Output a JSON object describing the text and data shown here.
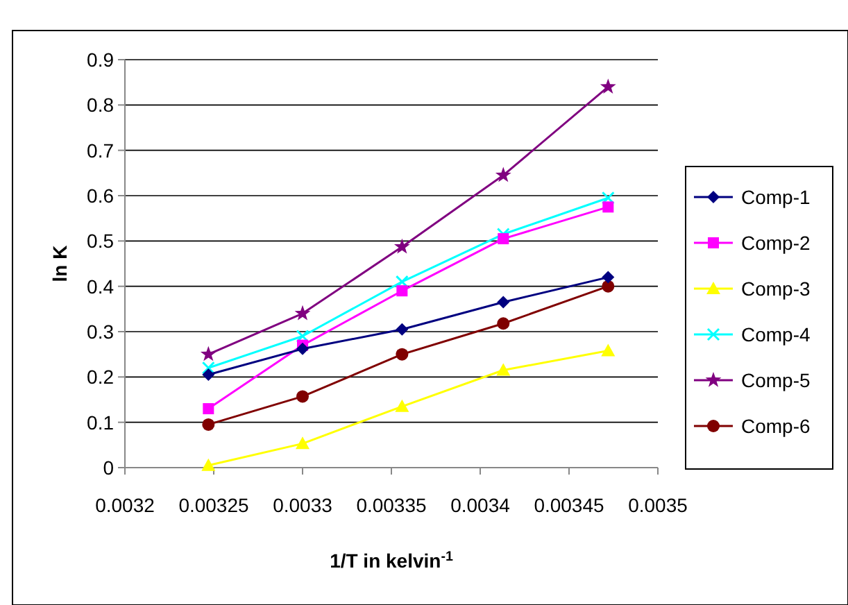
{
  "chart_data": {
    "type": "line",
    "xlabel": "1/T in kelvin$^{-1}$",
    "ylabel": "ln K",
    "x": [
      0.003247,
      0.0033,
      0.003356,
      0.003413,
      0.003472
    ],
    "xlim": [
      0.0032,
      0.0035
    ],
    "xticks": [
      0.0032,
      0.00325,
      0.0033,
      0.00335,
      0.0034,
      0.00345,
      0.0035
    ],
    "ylim": [
      0,
      0.9
    ],
    "yticks": [
      0,
      0.1,
      0.2,
      0.3,
      0.4,
      0.5,
      0.6,
      0.7,
      0.8,
      0.9
    ],
    "grid": "y",
    "legend": "right",
    "series": [
      {
        "name": "Comp-1",
        "color": "#000080",
        "marker": "diamond",
        "values": [
          0.205,
          0.262,
          0.305,
          0.365,
          0.42
        ]
      },
      {
        "name": "Comp-2",
        "color": "#ff00ff",
        "marker": "square",
        "values": [
          0.13,
          0.27,
          0.39,
          0.505,
          0.575
        ]
      },
      {
        "name": "Comp-3",
        "color": "#ffff00",
        "marker": "triangle",
        "values": [
          0.005,
          0.053,
          0.135,
          0.215,
          0.258
        ]
      },
      {
        "name": "Comp-4",
        "color": "#00ffff",
        "marker": "cross",
        "values": [
          0.22,
          0.29,
          0.41,
          0.515,
          0.595
        ]
      },
      {
        "name": "Comp-5",
        "color": "#800080",
        "marker": "star",
        "values": [
          0.25,
          0.34,
          0.487,
          0.645,
          0.84
        ]
      },
      {
        "name": "Comp-6",
        "color": "#800000",
        "marker": "circle",
        "values": [
          0.095,
          0.157,
          0.25,
          0.318,
          0.4
        ]
      }
    ]
  }
}
